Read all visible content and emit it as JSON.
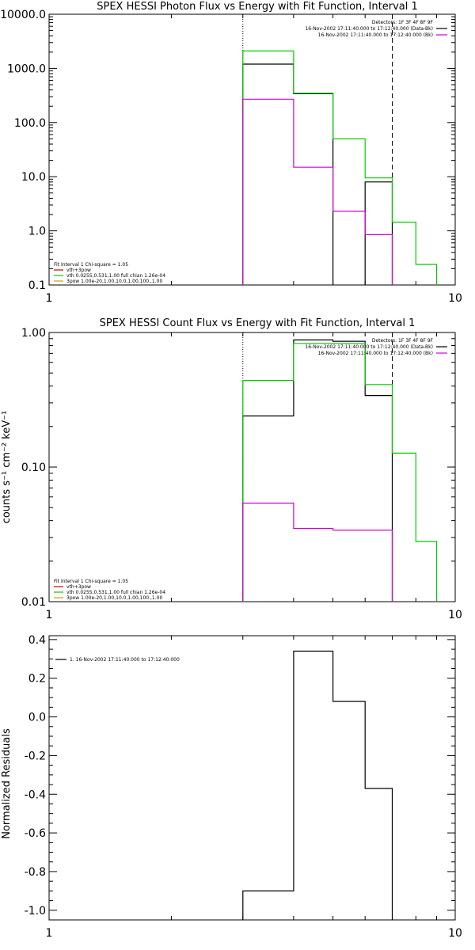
{
  "chart_data": [
    {
      "type": "line",
      "title": "SPEX HESSI Photon Flux vs Energy with Fit Function, Interval 1",
      "xlabel": "",
      "ylabel": "",
      "xscale": "log",
      "yscale": "log",
      "xlim": [
        1,
        10
      ],
      "ylim": [
        0.1,
        10000
      ],
      "x_ticks": [
        "1",
        "10"
      ],
      "y_ticks": [
        "0.1",
        "1.0",
        "10.0",
        "100.0",
        "1000.0",
        "10000.0"
      ],
      "x_edges": [
        3,
        4,
        5,
        6,
        7,
        8,
        9
      ],
      "vlines": [
        {
          "x": 3,
          "style": "dotted"
        },
        {
          "x": 7,
          "style": "dashed"
        }
      ],
      "series": [
        {
          "color": "#000000",
          "values": [
            1200,
            340,
            null,
            8
          ]
        },
        {
          "color": "#00cc00",
          "values": [
            2100,
            350,
            50,
            9.5,
            1.45,
            0.24
          ]
        },
        {
          "color": "#d000d0",
          "values": [
            270,
            15,
            2.3,
            0.85
          ]
        }
      ],
      "legend_top_right": {
        "detectors": "Detectors: 1F 3F 4F 8F 9F",
        "lines": [
          {
            "text": "16-Nov-2002 17:11:40.000 to 17:12:40.000 (Data-Bk)",
            "color": "#000000"
          },
          {
            "text": "16-Nov-2002 17:11:40.000 to 17:12:40.000 (Bk)",
            "color": "#d000d0"
          }
        ]
      },
      "legend_bottom_left": {
        "header": "Fit Interval 1    Chi-square = 1.05",
        "lines": [
          {
            "text": "vth+3pow",
            "color": "#cc0000"
          },
          {
            "text": "vth 0.0255,0.531,1.00  full chian 1.26e-04",
            "color": "#00cc00"
          },
          {
            "text": "3pow 1.00e-20,1.00,10.0,1.00,100.,1.00",
            "color": "#c8a000"
          }
        ]
      }
    },
    {
      "type": "line",
      "title": "SPEX HESSI Count Flux vs Energy with Fit Function, Interval 1",
      "xlabel": "",
      "ylabel": "counts s⁻¹ cm⁻² keV⁻¹",
      "xscale": "log",
      "yscale": "log",
      "xlim": [
        1,
        10
      ],
      "ylim": [
        0.01,
        1.0
      ],
      "x_ticks": [
        "1",
        "10"
      ],
      "y_ticks": [
        "0.01",
        "0.10",
        "1.00"
      ],
      "x_edges": [
        3,
        4,
        5,
        6,
        7,
        8,
        9
      ],
      "vlines": [
        {
          "x": 3,
          "style": "dotted"
        },
        {
          "x": 7,
          "style": "dashed"
        }
      ],
      "series": [
        {
          "color": "#000000",
          "values": [
            0.24,
            0.88,
            0.86,
            0.34
          ]
        },
        {
          "color": "#00cc00",
          "values": [
            0.44,
            0.83,
            0.83,
            0.41,
            0.127,
            0.028
          ]
        },
        {
          "color": "#d000d0",
          "values": [
            0.054,
            0.035,
            0.034,
            0.034
          ]
        }
      ],
      "legend_top_right": {
        "detectors": "Detectors: 1F 3F 4F 8F 9F",
        "lines": [
          {
            "text": "16-Nov-2002 17:11:40.000 to 17:12:40.000 (Data-Bk)",
            "color": "#000000"
          },
          {
            "text": "16-Nov-2002 17:11:40.000 to 17:12:40.000 (Bk)",
            "color": "#d000d0"
          }
        ]
      },
      "legend_bottom_left": {
        "header": "Fit Interval 1    Chi-square = 1.05",
        "lines": [
          {
            "text": "vth+3pow",
            "color": "#cc0000"
          },
          {
            "text": "vth 0.0255,0.531,1.00  full chian 1.26e-04",
            "color": "#00cc00"
          },
          {
            "text": "3pow 1.00e-20,1.00,10.0,1.00,100.,1.00",
            "color": "#c8a000"
          }
        ]
      }
    },
    {
      "type": "line",
      "title": "",
      "xlabel": "",
      "ylabel": "Normalized Residuals",
      "xscale": "log",
      "yscale": "linear",
      "xlim": [
        1,
        10
      ],
      "ylim": [
        -1.05,
        0.42
      ],
      "x_ticks": [
        "1",
        "10"
      ],
      "y_ticks": [
        "-1.0",
        "-0.8",
        "-0.6",
        "-0.4",
        "-0.2",
        "0.0",
        "0.2",
        "0.4"
      ],
      "y_tick_values": [
        -1.0,
        -0.8,
        -0.6,
        -0.4,
        -0.2,
        0.0,
        0.2,
        0.4
      ],
      "x_edges": [
        3,
        4,
        5,
        6,
        7
      ],
      "series": [
        {
          "color": "#000000",
          "values": [
            -0.9,
            0.34,
            0.08,
            -0.37
          ]
        }
      ],
      "legend_top_left": {
        "lines": [
          {
            "text": "1. 16-Nov-2002 17:11:40.000 to 17:12:40.000",
            "color": "#000000"
          }
        ]
      }
    }
  ]
}
